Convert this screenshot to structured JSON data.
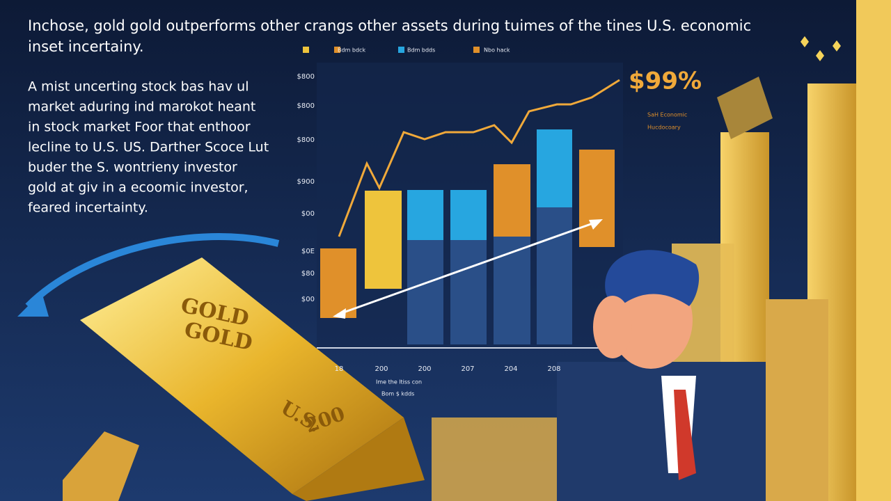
{
  "header": {
    "lines": [
      "Inchose, gold gold outperforms other crangs other assets during tuimes of the tines U.S. economic",
      "inset incertainy."
    ]
  },
  "paragraph": {
    "lines": [
      "A mist uncerting stock bas hav ul",
      "market aduring ind marokot heant",
      "in stock market Foor that enthoor",
      "lecline to U.S. US. Darther Scoce Lut",
      "buder the S. wontrieny investor",
      "gold at giv in a ecoomic investor,",
      "feared incertainty."
    ]
  },
  "chart": {
    "legend": [
      "Bdm bdck",
      "Bdm bdds",
      "Nbo hack"
    ],
    "y_labels": [
      "$800",
      "$800",
      "$800",
      "$900",
      "$00",
      "$0E",
      "$80",
      "$00"
    ],
    "x_labels": [
      "18",
      "200",
      "200",
      "207",
      "204",
      "208"
    ],
    "callout": "$99%",
    "note": [
      "SaH Economic",
      "Hucdocoary"
    ],
    "footer": [
      "Ime the ltiss con",
      "Bom $ kdds"
    ]
  },
  "gold_bar": {
    "labels": [
      "GOLD",
      "GOLD",
      "U.S.",
      "200"
    ]
  }
}
